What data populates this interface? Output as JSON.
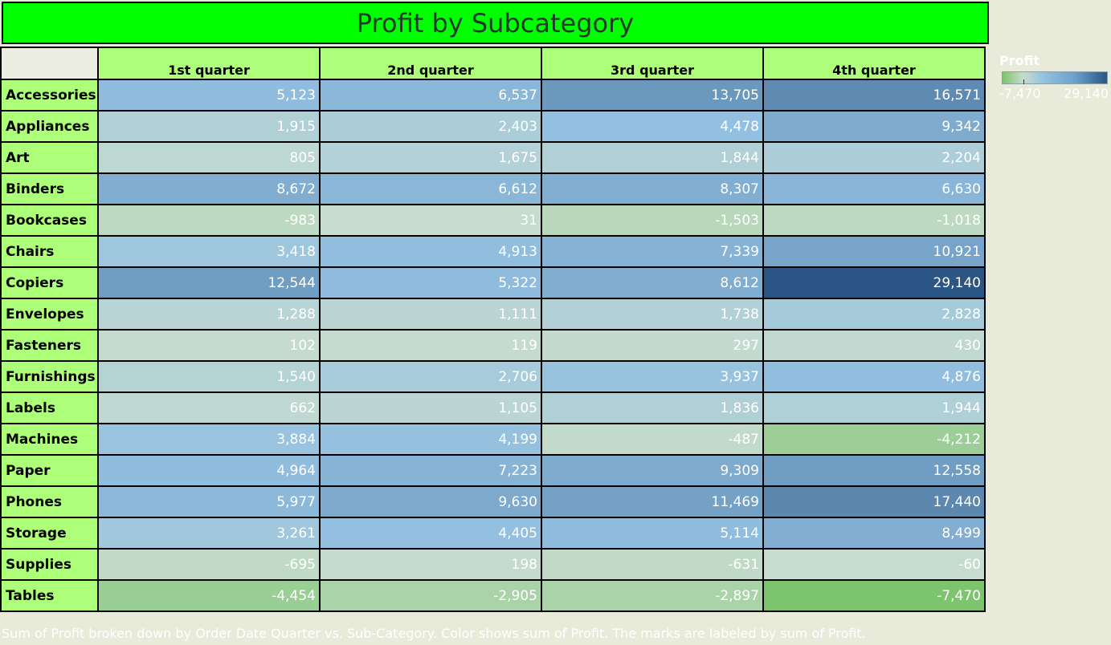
{
  "title": "Profit by Subcategory",
  "chart_data": {
    "type": "heatmap",
    "columns": [
      "1st quarter",
      "2nd quarter",
      "3rd quarter",
      "4th quarter"
    ],
    "rows": [
      "Accessories",
      "Appliances",
      "Art",
      "Binders",
      "Bookcases",
      "Chairs",
      "Copiers",
      "Envelopes",
      "Fasteners",
      "Furnishings",
      "Labels",
      "Machines",
      "Paper",
      "Phones",
      "Storage",
      "Supplies",
      "Tables"
    ],
    "values": [
      [
        5123,
        6537,
        13705,
        16571
      ],
      [
        1915,
        2403,
        4478,
        9342
      ],
      [
        805,
        1675,
        1844,
        2204
      ],
      [
        8672,
        6612,
        8307,
        6630
      ],
      [
        -983,
        31,
        -1503,
        -1018
      ],
      [
        3418,
        4913,
        7339,
        10921
      ],
      [
        12544,
        5322,
        8612,
        29140
      ],
      [
        1288,
        1111,
        1738,
        2828
      ],
      [
        102,
        119,
        297,
        430
      ],
      [
        1540,
        2706,
        3937,
        4876
      ],
      [
        662,
        1105,
        1836,
        1944
      ],
      [
        3884,
        4199,
        -487,
        -4212
      ],
      [
        4964,
        7223,
        9309,
        12558
      ],
      [
        5977,
        9630,
        11469,
        17440
      ],
      [
        3261,
        4405,
        5114,
        8499
      ],
      [
        -695,
        198,
        -631,
        -60
      ],
      [
        -4454,
        -2905,
        -2897,
        -7470
      ]
    ],
    "labels": [
      [
        "5,123",
        "6,537",
        "13,705",
        "16,571"
      ],
      [
        "1,915",
        "2,403",
        "4,478",
        "9,342"
      ],
      [
        "805",
        "1,675",
        "1,844",
        "2,204"
      ],
      [
        "8,672",
        "6,612",
        "8,307",
        "6,630"
      ],
      [
        "-983",
        "31",
        "-1,503",
        "-1,018"
      ],
      [
        "3,418",
        "4,913",
        "7,339",
        "10,921"
      ],
      [
        "12,544",
        "5,322",
        "8,612",
        "29,140"
      ],
      [
        "1,288",
        "1,111",
        "1,738",
        "2,828"
      ],
      [
        "102",
        "119",
        "297",
        "430"
      ],
      [
        "1,540",
        "2,706",
        "3,937",
        "4,876"
      ],
      [
        "662",
        "1,105",
        "1,836",
        "1,944"
      ],
      [
        "3,884",
        "4,199",
        "-487",
        "-4,212"
      ],
      [
        "4,964",
        "7,223",
        "9,309",
        "12,558"
      ],
      [
        "5,977",
        "9,630",
        "11,469",
        "17,440"
      ],
      [
        "3,261",
        "4,405",
        "5,114",
        "8,499"
      ],
      [
        "-695",
        "198",
        "-631",
        "-60"
      ],
      [
        "-4,454",
        "-2,905",
        "-2,897",
        "-7,470"
      ]
    ],
    "color_range": [
      -7470,
      29140
    ],
    "colors": {
      "min": "#7cc46d",
      "mid": "#c7dccf",
      "low_pos": "#93c0e0",
      "high": "#2a5584"
    }
  },
  "legend": {
    "title": "Profit",
    "min_label": "-7,470",
    "max_label": "29,140"
  },
  "caption": "Sum of Profit broken down by Order Date Quarter vs. Sub-Category.  Color shows sum of Profit.  The marks are labeled by sum of Profit."
}
